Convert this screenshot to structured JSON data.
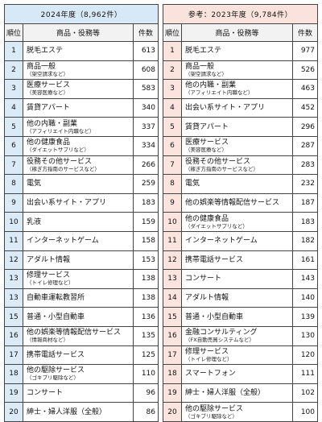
{
  "left": {
    "title": "2024年度（8,962件）",
    "headers": {
      "rank": "順位",
      "item": "商品・役務等",
      "count": "件数"
    },
    "rows": [
      {
        "rank": "1",
        "name": "脱毛エステ",
        "sub": "",
        "count": "613"
      },
      {
        "rank": "2",
        "name": "商品一般",
        "sub": "（架空請求など）",
        "count": "608"
      },
      {
        "rank": "3",
        "name": "医療サービス",
        "sub": "（美容医療など）",
        "count": "583"
      },
      {
        "rank": "4",
        "name": "賃貸アパート",
        "sub": "",
        "count": "340"
      },
      {
        "rank": "5",
        "name": "他の内職・副業",
        "sub": "（アフィリエイト内職など）",
        "count": "337"
      },
      {
        "rank": "6",
        "name": "他の健康食品",
        "sub": "（ダイエットサプリなど）",
        "count": "334"
      },
      {
        "rank": "7",
        "name": "役務その他サービス",
        "sub": "（稼ぎ方指南のサービスなど）",
        "count": "266"
      },
      {
        "rank": "8",
        "name": "電気",
        "sub": "",
        "count": "259"
      },
      {
        "rank": "9",
        "name": "出会い系サイト・アプリ",
        "sub": "",
        "count": "183"
      },
      {
        "rank": "10",
        "name": "乳液",
        "sub": "",
        "count": "159"
      },
      {
        "rank": "11",
        "name": "インターネットゲーム",
        "sub": "",
        "count": "158"
      },
      {
        "rank": "12",
        "name": "アダルト情報",
        "sub": "",
        "count": "153"
      },
      {
        "rank": "13",
        "name": "修理サービス",
        "sub": "（トイレ修理など）",
        "count": "138"
      },
      {
        "rank": "13",
        "name": "自動車運転教習所",
        "sub": "",
        "count": "138"
      },
      {
        "rank": "15",
        "name": "普通・小型自動車",
        "sub": "",
        "count": "136"
      },
      {
        "rank": "16",
        "name": "他の娯楽等情報配信サービス",
        "sub": "（情報商材など）",
        "count": "135"
      },
      {
        "rank": "17",
        "name": "携帯電話サービス",
        "sub": "",
        "count": "125"
      },
      {
        "rank": "18",
        "name": "他の駆除サービス",
        "sub": "（ゴキブリ駆除など）",
        "count": "110"
      },
      {
        "rank": "19",
        "name": "コンサート",
        "sub": "",
        "count": "96"
      },
      {
        "rank": "20",
        "name": "紳士・婦人洋服（全般）",
        "sub": "",
        "count": "86"
      }
    ]
  },
  "right": {
    "title": "参考：2023年度（9,784件）",
    "headers": {
      "rank": "順位",
      "item": "商品・役務等",
      "count": "件数"
    },
    "rows": [
      {
        "rank": "1",
        "name": "脱毛エステ",
        "sub": "",
        "count": "977"
      },
      {
        "rank": "2",
        "name": "商品一般",
        "sub": "（架空請求など）",
        "count": "526"
      },
      {
        "rank": "3",
        "name": "他の内職・副業",
        "sub": "（アフィリエイト内職など）",
        "count": "463"
      },
      {
        "rank": "4",
        "name": "出会い系サイト・アプリ",
        "sub": "",
        "count": "452"
      },
      {
        "rank": "5",
        "name": "賃貸アパート",
        "sub": "",
        "count": "296"
      },
      {
        "rank": "6",
        "name": "医療サービス",
        "sub": "（美容医療など）",
        "count": "287"
      },
      {
        "rank": "7",
        "name": "役務その他サービス",
        "sub": "（稼ぎ方指南のサービスなど）",
        "count": "283"
      },
      {
        "rank": "8",
        "name": "電気",
        "sub": "",
        "count": "232"
      },
      {
        "rank": "9",
        "name": "他の娯楽等情報配信サービス",
        "sub": "",
        "count": "187"
      },
      {
        "rank": "10",
        "name": "他の健康食品",
        "sub": "（ダイエットサプリなど）",
        "count": "183"
      },
      {
        "rank": "11",
        "name": "インターネットゲーム",
        "sub": "",
        "count": "182"
      },
      {
        "rank": "12",
        "name": "携帯電話サービス",
        "sub": "",
        "count": "161"
      },
      {
        "rank": "13",
        "name": "コンサート",
        "sub": "",
        "count": "143"
      },
      {
        "rank": "14",
        "name": "アダルト情報",
        "sub": "",
        "count": "140"
      },
      {
        "rank": "15",
        "name": "普通・小型自動車",
        "sub": "",
        "count": "139"
      },
      {
        "rank": "16",
        "name": "金融コンサルティング",
        "sub": "（FX自動売買システムなど）",
        "count": "130"
      },
      {
        "rank": "17",
        "name": "修理サービス",
        "sub": "（トイレ修理など）",
        "count": "120"
      },
      {
        "rank": "18",
        "name": "スマートフォン",
        "sub": "",
        "count": "111"
      },
      {
        "rank": "19",
        "name": "紳士・婦人洋服（全般）",
        "sub": "",
        "count": "102"
      },
      {
        "rank": "20",
        "name": "他の駆除サービス",
        "sub": "（ゴキブリ駆除など）",
        "count": "100"
      }
    ]
  }
}
